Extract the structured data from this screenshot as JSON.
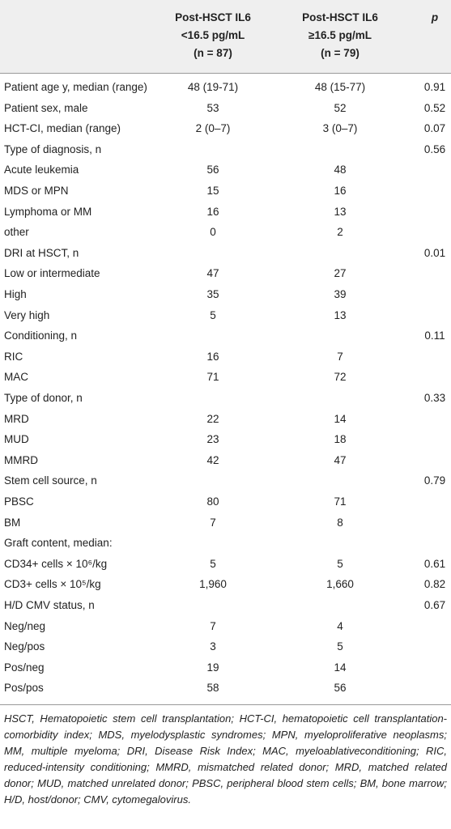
{
  "table": {
    "header": [
      [
        "Post-HSCT IL6",
        "<16.5 pg/mL",
        "(n = 87)"
      ],
      [
        "Post-HSCT IL6",
        "≥16.5 pg/mL",
        "(n = 79)"
      ],
      "p"
    ],
    "rows": [
      [
        "Patient age y, median (range)",
        "48 (19-71)",
        "48 (15-77)",
        "0.91"
      ],
      [
        "Patient sex, male",
        "53",
        "52",
        "0.52"
      ],
      [
        "HCT-CI, median (range)",
        "2 (0–7)",
        "3 (0–7)",
        "0.07"
      ],
      [
        "Type of diagnosis, n",
        null,
        null,
        "0.56"
      ],
      [
        "Acute leukemia",
        "56",
        "48",
        null
      ],
      [
        "MDS or MPN",
        "15",
        "16",
        null
      ],
      [
        "Lymphoma or MM",
        "16",
        "13",
        null
      ],
      [
        "other",
        "0",
        "2",
        null
      ],
      [
        "DRI at HSCT, n",
        null,
        null,
        "0.01"
      ],
      [
        "Low or intermediate",
        "47",
        "27",
        null
      ],
      [
        "High",
        "35",
        "39",
        null
      ],
      [
        "Very high",
        "5",
        "13",
        null
      ],
      [
        "Conditioning, n",
        null,
        null,
        "0.11"
      ],
      [
        "RIC",
        "16",
        "7",
        null
      ],
      [
        "MAC",
        "71",
        "72",
        null
      ],
      [
        "Type of donor, n",
        null,
        null,
        "0.33"
      ],
      [
        "MRD",
        "22",
        "14",
        null
      ],
      [
        "MUD",
        "23",
        "18",
        null
      ],
      [
        "MMRD",
        "42",
        "47",
        null
      ],
      [
        "Stem cell source, n",
        null,
        null,
        "0.79"
      ],
      [
        "PBSC",
        "80",
        "71",
        null
      ],
      [
        "BM",
        "7",
        "8",
        null
      ],
      [
        "Graft content, median:",
        null,
        null,
        null
      ],
      [
        "CD34+ cells × 10⁶/kg",
        "5",
        "5",
        "0.61"
      ],
      [
        "CD3+ cells × 10⁵/kg",
        "1,960",
        "1,660",
        "0.82"
      ],
      [
        "H/D CMV status, n",
        null,
        null,
        "0.67"
      ],
      [
        "Neg/neg",
        "7",
        "4",
        null
      ],
      [
        "Neg/pos",
        "3",
        "5",
        null
      ],
      [
        "Pos/neg",
        "19",
        "14",
        null
      ],
      [
        "Pos/pos",
        "58",
        "56",
        null
      ]
    ]
  },
  "footnote": "HSCT, Hematopoietic stem cell transplantation; HCT-CI, hematopoietic cell transplantation-comorbidity index; MDS, myelodysplastic syndromes; MPN, myeloproliferative neoplasms; MM, multiple myeloma; DRI, Disease Risk Index; MAC, myeloablativeconditioning; RIC, reduced-intensity conditioning; MMRD, mismatched related donor; MRD, matched related donor; MUD, matched unrelated donor; PBSC, peripheral blood stem cells; BM, bone marrow; H/D, host/donor; CMV, cytomegalovirus."
}
